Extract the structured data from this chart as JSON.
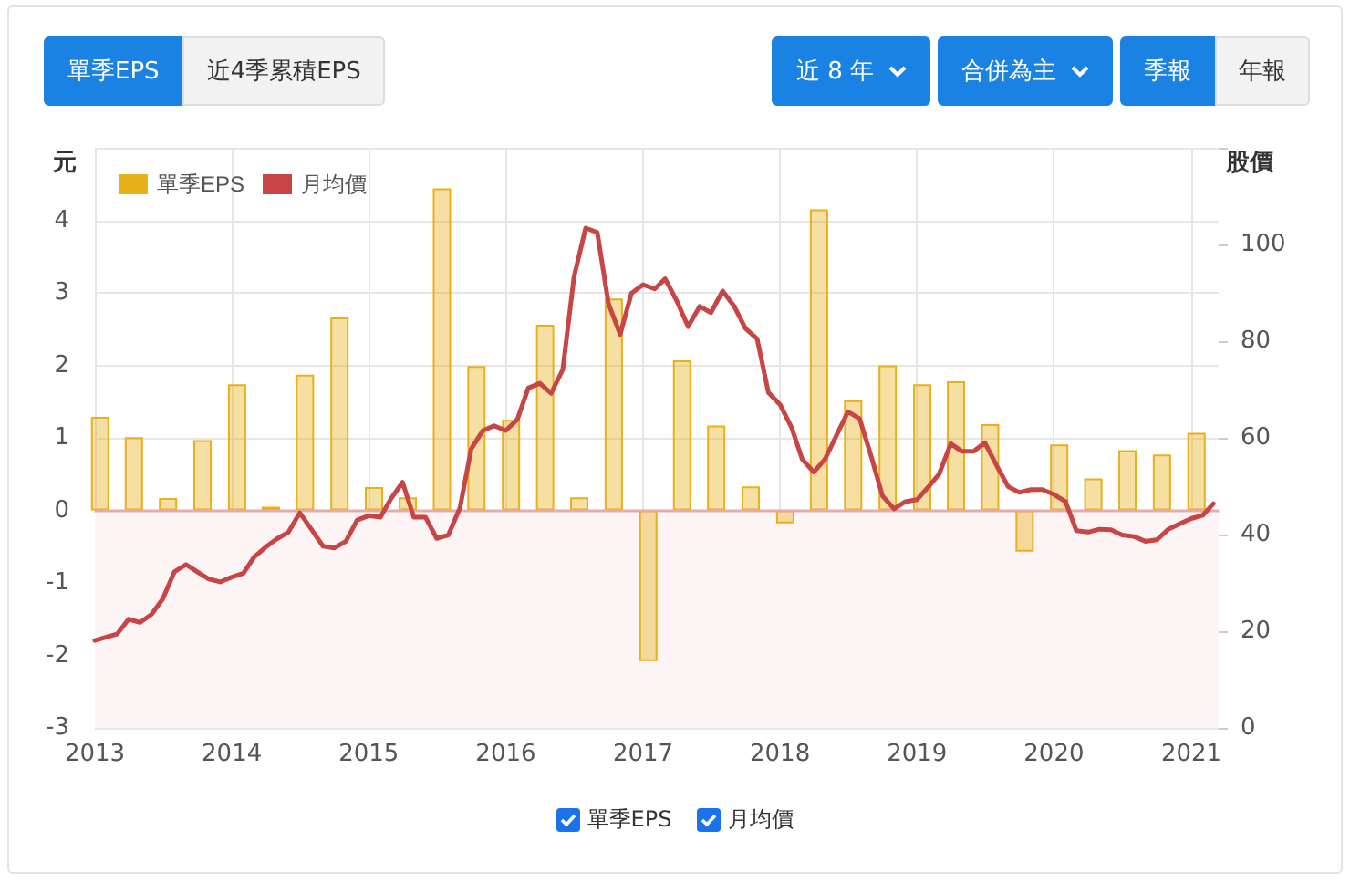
{
  "chart_data": {
    "type": "bar",
    "ylabel": "元",
    "y2label": "股價",
    "annotations": [
      "單季EPS",
      "近4季累積EPS",
      "近 8 年",
      "合併為主",
      "季報",
      "年報"
    ],
    "xlim": [
      "2013-01-01",
      "2021-03-15"
    ],
    "xticks": [
      "2013",
      "2014",
      "2015",
      "2016",
      "2017",
      "2018",
      "2019",
      "2020",
      "2021"
    ],
    "ylim": [
      -3,
      5
    ],
    "yticks": [
      -3,
      -2,
      -1,
      0,
      1,
      2,
      3,
      4,
      {
        "value": 5,
        "label": null
      }
    ],
    "y2lim": [
      0,
      120
    ],
    "y2ticks": [
      0,
      20,
      40,
      60,
      80,
      100,
      {
        "value": 120,
        "label": null
      }
    ],
    "grid": true,
    "legend": "top left",
    "marker": "none",
    "bands": [
      {
        "axis": "y",
        "from": -3,
        "to": 0,
        "color": "#fdf4f6"
      }
    ],
    "ref_lines": [
      {
        "axis": "y",
        "value": 0,
        "color": "#e8aaaa"
      }
    ],
    "series": [
      {
        "name": "單季EPS",
        "color": "#e8b019",
        "x": [
          "2013-01-15",
          "2013-04-15",
          "2013-07-15",
          "2013-10-15",
          "2014-01-15",
          "2014-04-15",
          "2014-07-15",
          "2014-10-15",
          "2015-01-15",
          "2015-04-15",
          "2015-07-15",
          "2015-10-15",
          "2016-01-15",
          "2016-04-15",
          "2016-07-15",
          "2016-10-15",
          "2017-01-15",
          "2017-04-15",
          "2017-07-15",
          "2017-10-15",
          "2018-01-15",
          "2018-04-15",
          "2018-07-15",
          "2018-10-15",
          "2019-01-15",
          "2019-04-15",
          "2019-07-15",
          "2019-10-15",
          "2020-01-15",
          "2020-04-15",
          "2020-07-15",
          "2020-10-15",
          "2021-01-15"
        ],
        "values": [
          1.29,
          1.01,
          0.17,
          0.97,
          1.74,
          0.05,
          1.87,
          2.66,
          0.32,
          0.18,
          4.44,
          1.99,
          1.25,
          2.56,
          0.18,
          2.92,
          -2.08,
          2.07,
          1.17,
          0.33,
          -0.18,
          4.15,
          1.52,
          2.0,
          1.74,
          1.78,
          1.19,
          -0.57,
          0.91,
          0.44,
          0.83,
          0.77,
          1.07
        ]
      },
      {
        "name": "月均價",
        "type": "line",
        "axis": "y2",
        "color": "#c84545",
        "x": [
          "2013-01",
          "2013-02",
          "2013-03",
          "2013-04",
          "2013-05",
          "2013-06",
          "2013-07",
          "2013-08",
          "2013-09",
          "2013-10",
          "2013-11",
          "2013-12",
          "2014-01",
          "2014-02",
          "2014-03",
          "2014-04",
          "2014-05",
          "2014-06",
          "2014-07",
          "2014-08",
          "2014-09",
          "2014-10",
          "2014-11",
          "2014-12",
          "2015-01",
          "2015-02",
          "2015-03",
          "2015-04",
          "2015-05",
          "2015-06",
          "2015-07",
          "2015-08",
          "2015-09",
          "2015-10",
          "2015-11",
          "2015-12",
          "2016-01",
          "2016-02",
          "2016-03",
          "2016-04",
          "2016-05",
          "2016-06",
          "2016-07",
          "2016-08",
          "2016-09",
          "2016-10",
          "2016-11",
          "2016-12",
          "2017-01",
          "2017-02",
          "2017-03",
          "2017-04",
          "2017-05",
          "2017-06",
          "2017-07",
          "2017-08",
          "2017-09",
          "2017-10",
          "2017-11",
          "2017-12",
          "2018-01",
          "2018-02",
          "2018-03",
          "2018-04",
          "2018-05",
          "2018-06",
          "2018-07",
          "2018-08",
          "2018-09",
          "2018-10",
          "2018-11",
          "2018-12",
          "2019-01",
          "2019-02",
          "2019-03",
          "2019-04",
          "2019-05",
          "2019-06",
          "2019-07",
          "2019-08",
          "2019-09",
          "2019-10",
          "2019-11",
          "2019-12",
          "2020-01",
          "2020-02",
          "2020-03",
          "2020-04",
          "2020-05",
          "2020-06",
          "2020-07",
          "2020-08",
          "2020-09",
          "2020-10",
          "2020-11",
          "2020-12",
          "2021-01",
          "2021-02",
          "2021-03"
        ],
        "values": [
          18.1,
          18.8,
          19.4,
          22.5,
          21.8,
          23.5,
          26.7,
          32.3,
          33.8,
          32.3,
          30.8,
          30.2,
          31.2,
          32,
          35.3,
          37.4,
          39.1,
          40.5,
          44.5,
          41.1,
          37.6,
          37.2,
          38.6,
          43,
          43.9,
          43.6,
          47.4,
          50.8,
          43.6,
          43.6,
          39.2,
          39.9,
          45.5,
          57.7,
          61.5,
          62.5,
          61.5,
          63.8,
          70.3,
          71.3,
          69.2,
          74.1,
          93.3,
          103.4,
          102.5,
          87.7,
          81.4,
          89.9,
          91.7,
          90.8,
          92.9,
          88.3,
          83,
          87.2,
          85.9,
          90.4,
          87.2,
          82.6,
          80.5,
          69.4,
          66.9,
          62.1,
          55.6,
          52.9,
          55.6,
          60.6,
          65.4,
          64,
          56.2,
          48,
          45.3,
          46.8,
          47.2,
          49.9,
          52.5,
          58.8,
          57.2,
          57.2,
          59,
          54.3,
          49.9,
          48.7,
          49.3,
          49.3,
          48.3,
          46.8,
          40.8,
          40.5,
          41.1,
          41,
          39.9,
          39.6,
          38.6,
          38.9,
          41.1,
          42.2,
          43.3,
          44,
          46.4
        ]
      }
    ]
  }
}
